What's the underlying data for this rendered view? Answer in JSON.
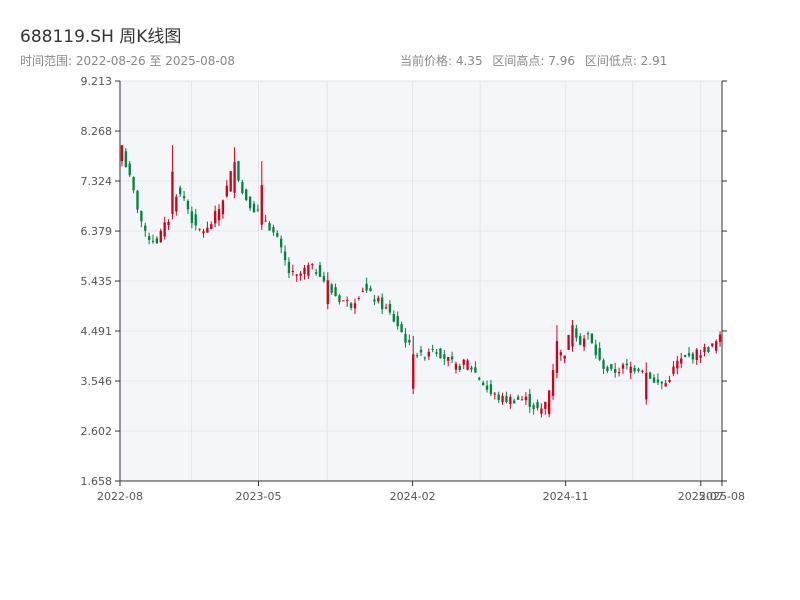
{
  "header": {
    "title": "688119.SH 周K线图",
    "range_text": "时间范围: 2022-08-26 至 2025-08-08",
    "current_price": "当前价格: 4.35",
    "range_high": "区间高点: 7.96",
    "range_low": "区间低点: 2.91"
  },
  "colors": {
    "up": "#d0021b",
    "down": "#00843d",
    "plot_bg": "#f5f6f9",
    "grid": "#e3e5ea",
    "axis": "#333333"
  },
  "chart_data": {
    "type": "candlestick",
    "title": "688119.SH 周K线图",
    "ylim": [
      1.658,
      9.213
    ],
    "yticks": [
      "1.658",
      "2.602",
      "3.546",
      "4.491",
      "5.435",
      "6.379",
      "7.324",
      "8.268",
      "9.213"
    ],
    "xticks": [
      {
        "date": "2022-08-26",
        "label": "2022-08"
      },
      {
        "date": "2023-05-01",
        "label": "2023-05"
      },
      {
        "date": "2024-02-01",
        "label": "2024-02"
      },
      {
        "date": "2024-11-01",
        "label": "2024-11"
      },
      {
        "date": "2025-07-01",
        "label": "2025-07"
      },
      {
        "date": "2025-08-08",
        "label": "2025-08"
      }
    ],
    "x_start": "2022-08-26",
    "x_end": "2025-08-08",
    "grid": true,
    "anchors": [
      [
        0,
        7.9
      ],
      [
        3,
        7.1
      ],
      [
        6,
        6.3
      ],
      [
        9,
        6.2
      ],
      [
        12,
        6.6
      ],
      [
        14,
        7.1
      ],
      [
        16,
        7.0
      ],
      [
        19,
        6.4
      ],
      [
        22,
        6.4
      ],
      [
        25,
        6.8
      ],
      [
        27,
        7.2
      ],
      [
        29,
        7.7
      ],
      [
        31,
        7.1
      ],
      [
        34,
        6.8
      ],
      [
        37,
        6.6
      ],
      [
        40,
        6.2
      ],
      [
        43,
        5.6
      ],
      [
        45,
        5.5
      ],
      [
        48,
        5.7
      ],
      [
        51,
        5.6
      ],
      [
        53,
        5.3
      ],
      [
        56,
        5.1
      ],
      [
        59,
        5.0
      ],
      [
        62,
        5.3
      ],
      [
        65,
        5.1
      ],
      [
        68,
        4.9
      ],
      [
        71,
        4.6
      ],
      [
        74,
        4.2
      ],
      [
        77,
        4.0
      ],
      [
        80,
        4.2
      ],
      [
        83,
        4.0
      ],
      [
        86,
        3.8
      ],
      [
        89,
        3.9
      ],
      [
        92,
        3.6
      ],
      [
        95,
        3.3
      ],
      [
        98,
        3.2
      ],
      [
        101,
        3.2
      ],
      [
        104,
        3.2
      ],
      [
        107,
        3.0
      ],
      [
        109,
        2.95
      ],
      [
        111,
        3.8
      ],
      [
        112,
        4.0
      ],
      [
        114,
        4.1
      ],
      [
        116,
        4.6
      ],
      [
        118,
        4.3
      ],
      [
        120,
        4.4
      ],
      [
        123,
        3.9
      ],
      [
        126,
        3.7
      ],
      [
        129,
        3.8
      ],
      [
        132,
        3.8
      ],
      [
        135,
        3.8
      ],
      [
        137,
        3.5
      ],
      [
        140,
        3.5
      ],
      [
        143,
        3.9
      ],
      [
        146,
        4.0
      ],
      [
        149,
        4.1
      ],
      [
        152,
        4.2
      ],
      [
        154,
        4.35
      ]
    ],
    "spikes": [
      [
        0,
        8.0,
        7.6
      ],
      [
        13,
        8.0,
        6.6
      ],
      [
        29,
        7.96,
        7.0
      ],
      [
        36,
        7.7,
        6.4
      ],
      [
        53,
        5.6,
        4.9
      ],
      [
        75,
        4.4,
        3.3
      ],
      [
        112,
        4.6,
        3.6
      ],
      [
        116,
        4.7,
        4.1
      ],
      [
        135,
        3.9,
        3.1
      ],
      [
        109,
        3.0,
        2.91
      ]
    ]
  }
}
